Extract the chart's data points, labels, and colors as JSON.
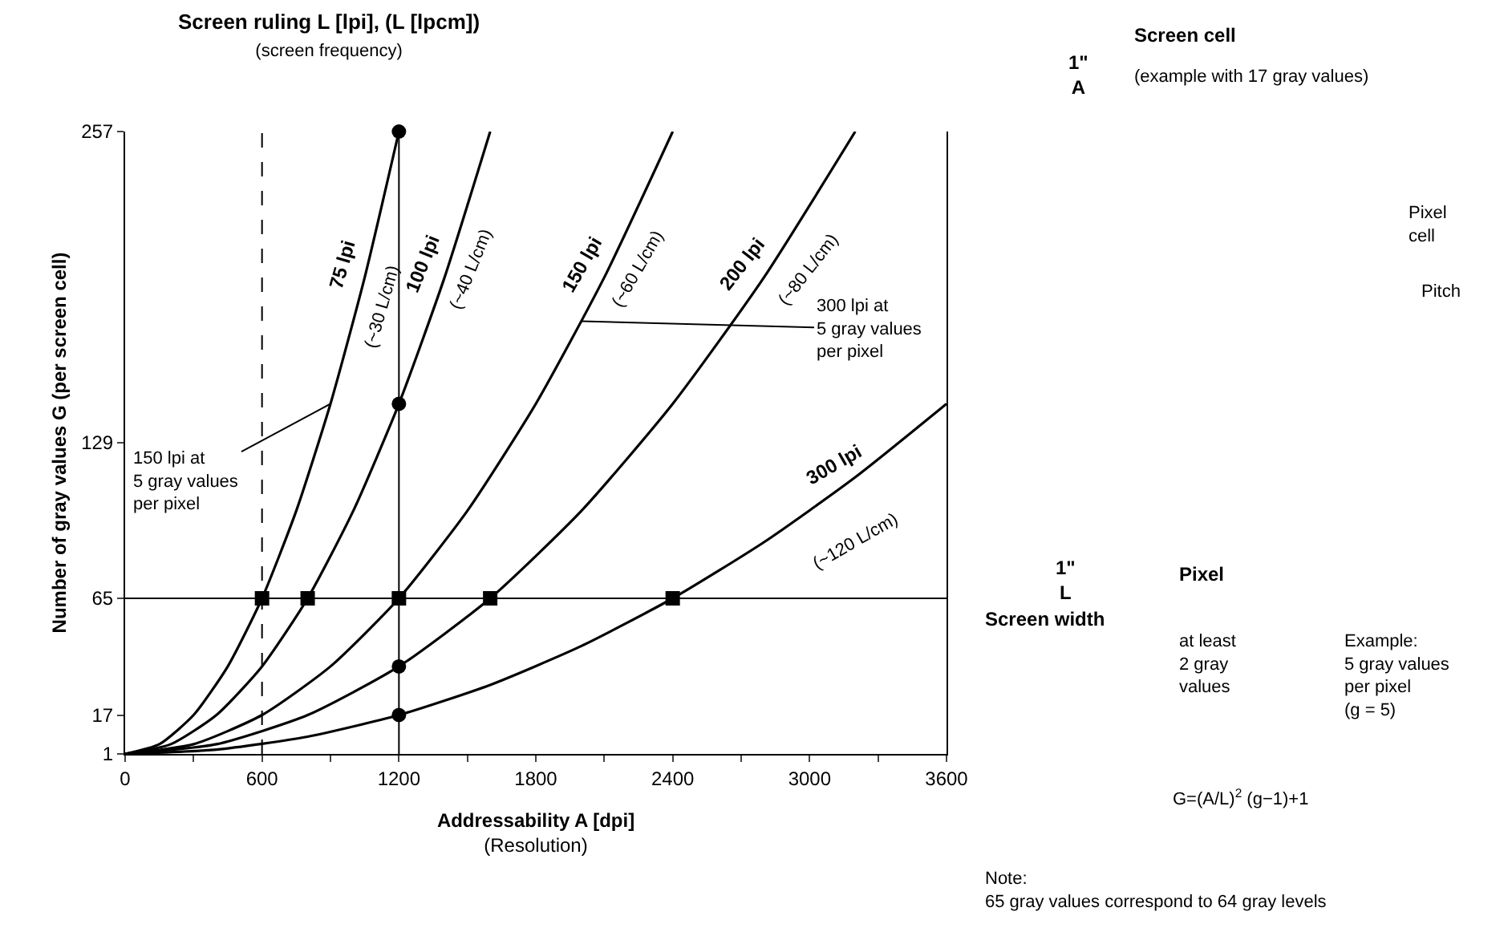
{
  "chart_data": {
    "type": "line",
    "title": "Screen ruling L [lpi], (L [lpcm])",
    "subtitle": "(screen frequency)",
    "xlabel": "Addressability A [dpi]\n(Resolution)",
    "ylabel": "Number of gray values G (per screen cell)",
    "xlim": [
      0,
      3600
    ],
    "ylim": [
      1,
      257
    ],
    "xticks": [
      0,
      {
        "value": 300,
        "label": null
      },
      600,
      {
        "value": 900,
        "label": null
      },
      1200,
      {
        "value": 1500,
        "label": null
      },
      1800,
      {
        "value": 2100,
        "label": null
      },
      2400,
      {
        "value": 2700,
        "label": null
      },
      3000,
      {
        "value": 3300,
        "label": null
      },
      3600
    ],
    "yticks": [
      1,
      17,
      65,
      129,
      257
    ],
    "legend": false,
    "marker": "none",
    "line_style": "solid",
    "series": [
      {
        "name": "75 lpi",
        "color": "#000000",
        "x": [
          0,
          150,
          300,
          450,
          600,
          750,
          900,
          1050,
          1200
        ],
        "values": [
          1,
          5,
          17,
          37,
          65,
          101,
          145,
          197,
          257
        ]
      },
      {
        "name": "100 lpi",
        "color": "#000000",
        "x": [
          0,
          200,
          400,
          600,
          800,
          1000,
          1200,
          1400,
          1600
        ],
        "values": [
          1,
          5,
          17,
          37,
          65,
          101,
          145,
          197,
          257
        ]
      },
      {
        "name": "150 lpi",
        "color": "#000000",
        "x": [
          0,
          300,
          600,
          900,
          1200,
          1500,
          1800,
          2100,
          2400
        ],
        "values": [
          1,
          5,
          17,
          37,
          65,
          101,
          145,
          197,
          257
        ]
      },
      {
        "name": "200 lpi",
        "color": "#000000",
        "x": [
          0,
          400,
          800,
          1200,
          1600,
          2000,
          2400,
          2800,
          3200
        ],
        "values": [
          1,
          5,
          17,
          37,
          65,
          101,
          145,
          197,
          257
        ]
      },
      {
        "name": "300 lpi",
        "color": "#000000",
        "x": [
          0,
          400,
          800,
          1200,
          1600,
          2000,
          2400,
          2800,
          3200,
          3600
        ],
        "values": [
          1,
          2.8,
          8.1,
          17,
          29.4,
          45.4,
          65,
          88.1,
          114.8,
          145
        ]
      },
      {
        "type": "scatter",
        "marker": "square",
        "color": "#000000",
        "x": [
          600,
          800,
          1200,
          1600,
          2400
        ],
        "values": [
          65,
          65,
          65,
          65,
          65
        ]
      },
      {
        "type": "scatter",
        "marker": "circle",
        "color": "#000000",
        "x": [
          1200,
          1200,
          1200,
          1200
        ],
        "values": [
          257,
          145,
          37,
          17
        ]
      }
    ],
    "ref_lines": [
      {
        "axis": "x",
        "value": 600,
        "line_style": "dashed",
        "color": "#000000"
      },
      {
        "axis": "x",
        "value": 1200,
        "line_style": "solid",
        "color": "#000000"
      },
      {
        "axis": "y",
        "value": 65,
        "line_style": "solid",
        "color": "#000000"
      }
    ],
    "annotations": [
      {
        "text": "150 lpi at\n5 gray values\nper pixel",
        "x": 900,
        "y": 145
      },
      {
        "text": "300 lpi at\n5 gray values\nper pixel",
        "x": 2000,
        "y": 179
      },
      "(~30 L/cm)",
      "(~40 L/cm)",
      "(~60 L/cm)",
      "(~80 L/cm)",
      "(~120 L/cm)",
      "1\"\nA",
      "Screen cell",
      "(example with 17 gray values)",
      "Pixel\ncell",
      "Pitch",
      "1\"\nL",
      "Screen width",
      "Pixel",
      "at least\n2 gray\nvalues",
      "Example:\n5 gray values\nper pixel\n(g = 5)",
      "G=(A/L)$^{2}$ (g−1)+1",
      "Note:\n65 gray values correspond to 64 gray levels"
    ]
  }
}
